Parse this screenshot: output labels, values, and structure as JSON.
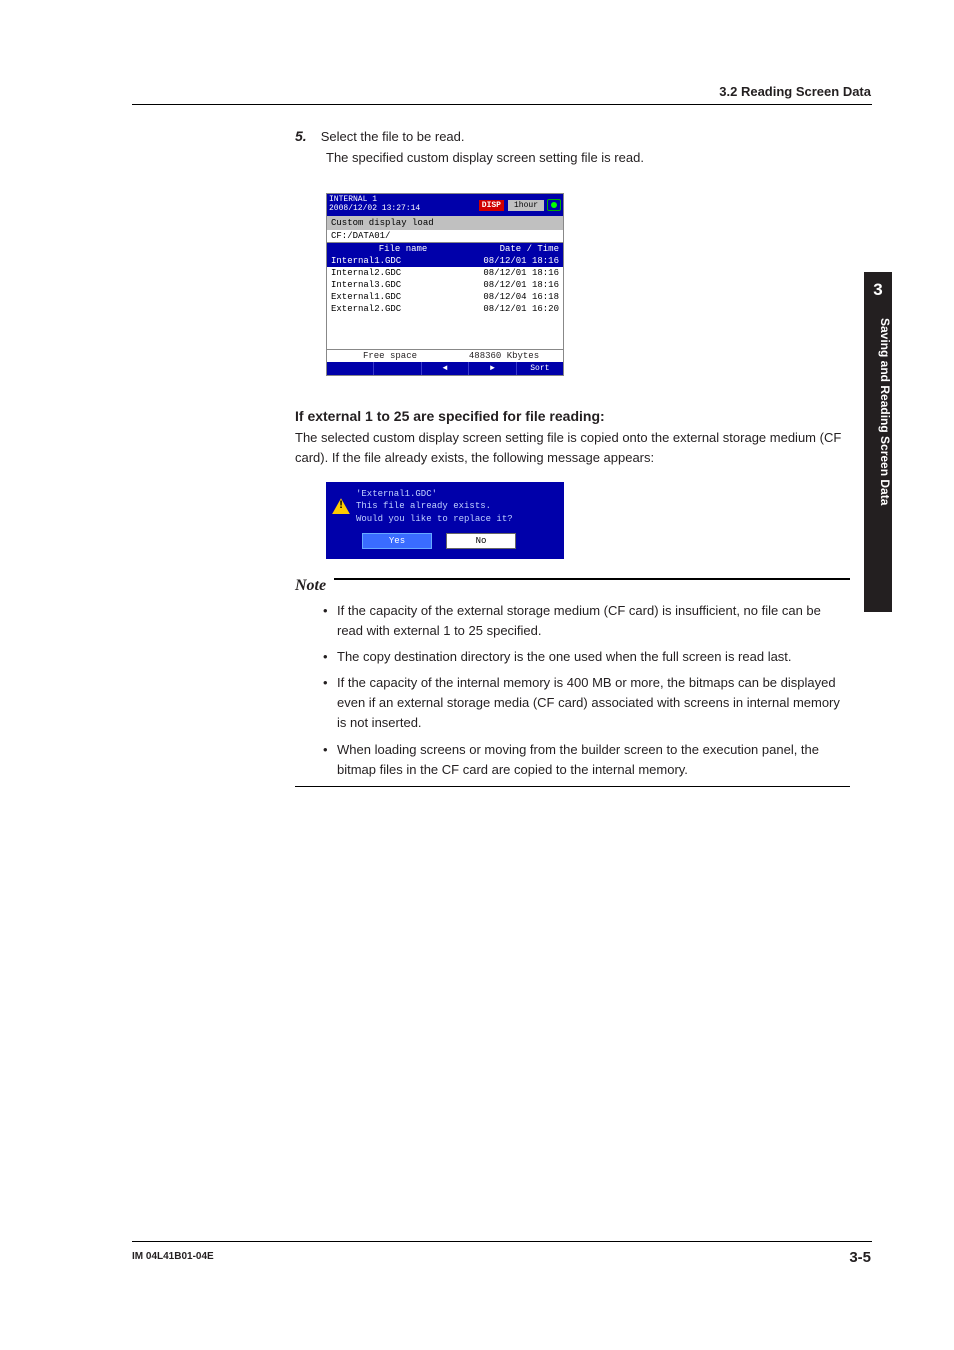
{
  "header": {
    "section": "3.2 Reading Screen Data"
  },
  "sidebar": {
    "chapter": "3",
    "title": "Saving and Reading Screen Data"
  },
  "step": {
    "number": "5.",
    "text": "Select the file to be read.",
    "sub": "The specified custom display screen setting file is read."
  },
  "screenshot": {
    "device": "INTERNAL 1",
    "timestamp": "2008/12/02 13:27:14",
    "disp_label": "DISP",
    "hour_label": "1hour",
    "title": "Custom display load",
    "path": "CF:/DATA01/",
    "col_file": "File name",
    "col_date": "Date / Time",
    "rows": [
      {
        "name": "Internal1.GDC",
        "date": "08/12/01 18:16",
        "selected": true
      },
      {
        "name": "Internal2.GDC",
        "date": "08/12/01 18:16",
        "selected": false
      },
      {
        "name": "Internal3.GDC",
        "date": "08/12/01 18:16",
        "selected": false
      },
      {
        "name": "External1.GDC",
        "date": "08/12/04 16:18",
        "selected": false
      },
      {
        "name": "External2.GDC",
        "date": "08/12/01 16:20",
        "selected": false
      }
    ],
    "free_label": "Free space",
    "free_value": "488360 Kbytes",
    "foot": [
      "",
      "",
      "◄",
      "►",
      "Sort"
    ]
  },
  "section_heading": "If external 1 to 25 are specified for file reading:",
  "section_body": "The selected custom display screen setting file is copied onto the external storage medium (CF card). If the file already exists, the following message appears:",
  "dialog": {
    "filename": "'External1.GDC'",
    "line1": "This file already exists.",
    "line2": "Would you like to replace it?",
    "yes": "Yes",
    "no": "No"
  },
  "note": {
    "label": "Note",
    "items": [
      "If the capacity of the external storage medium (CF card) is insufficient, no file can be read with external 1 to 25 specified.",
      "The copy destination directory is the one used when the full screen is read last.",
      "If the capacity of the internal memory is 400 MB or more, the bitmaps can be displayed even if an external storage media (CF card) associated with screens in internal memory is not inserted.",
      "When loading screens or moving from the builder screen to the execution panel, the bitmap files in the CF card are copied to the internal memory."
    ]
  },
  "footer": {
    "doc_id": "IM 04L41B01-04E",
    "page": "3-5"
  },
  "colors": {
    "ui_blue": "#0000aa",
    "ui_red": "#d00000",
    "ui_gray": "#c0c0c0",
    "warn_yellow": "#ffcc00",
    "btn_blue": "#3a6cff"
  }
}
